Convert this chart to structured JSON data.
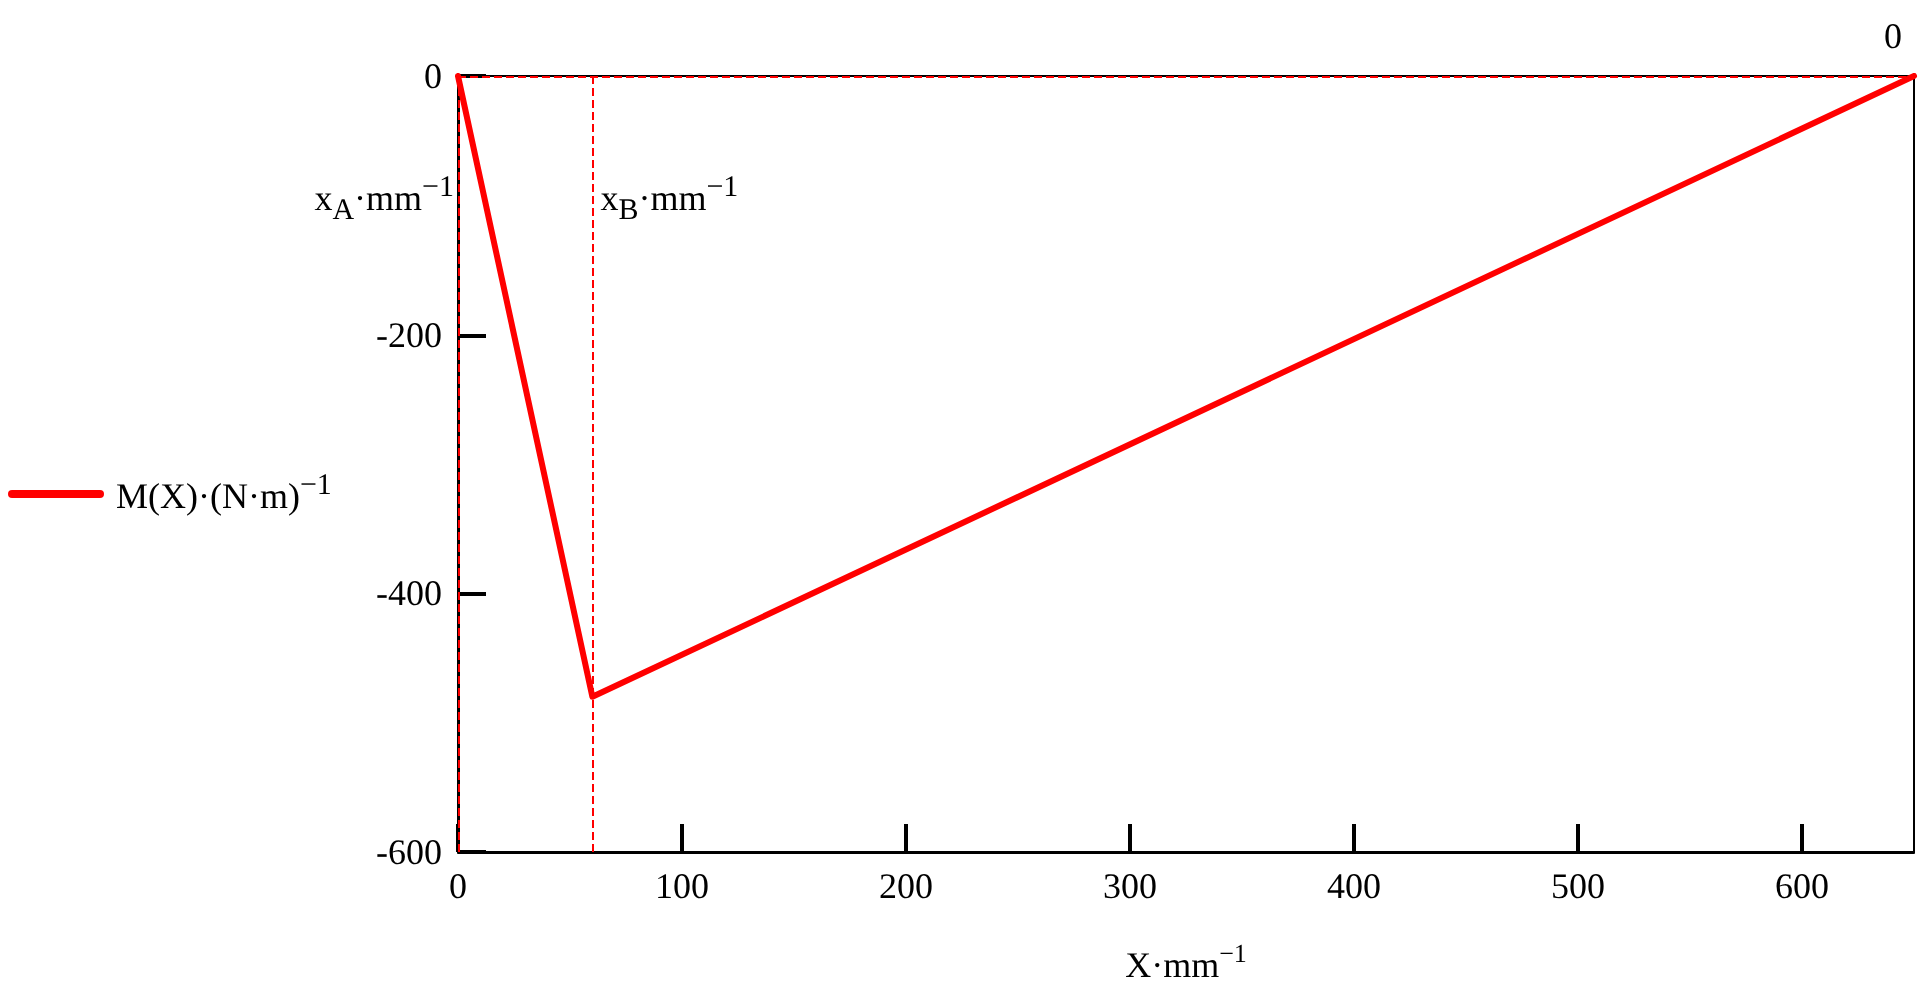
{
  "chart_data": {
    "type": "line",
    "xlabel": "X·mm$^{−1}$",
    "legend": "left",
    "x": [
      0,
      60,
      650
    ],
    "series": [
      {
        "name": "M(X)·(N·m)$^{−1}$",
        "color": "#ff0000",
        "values": [
          0,
          -480,
          0
        ]
      }
    ],
    "xlim": [
      0,
      650
    ],
    "xticks": [
      0,
      100,
      200,
      300,
      400,
      500,
      600
    ],
    "ylim": [
      -600,
      0
    ],
    "yticks": [
      0,
      -200,
      -400,
      -600
    ],
    "grid": false,
    "line_style": "solid",
    "marker": "none",
    "ref_lines": [
      {
        "axis": "x",
        "value": 0,
        "label": "x$_{A}$·mm$^{−1}$",
        "color": "#ff0000",
        "line_style": "dashed"
      },
      {
        "axis": "x",
        "value": 60,
        "label": "x$_{B}$·mm$^{−1}$",
        "color": "#ff0000",
        "line_style": "dashed"
      },
      {
        "axis": "y",
        "value": 0,
        "label": "0",
        "color": "#ff0000",
        "line_style": "dashed"
      }
    ]
  }
}
